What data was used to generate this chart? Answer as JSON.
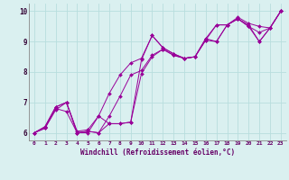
{
  "xlabel": "Windchill (Refroidissement éolien,°C)",
  "background_color": "#daf0f0",
  "line_color": "#990099",
  "grid_color": "#b8dede",
  "xlim": [
    -0.5,
    23.5
  ],
  "ylim": [
    5.75,
    10.25
  ],
  "xticks": [
    0,
    1,
    2,
    3,
    4,
    5,
    6,
    7,
    8,
    9,
    10,
    11,
    12,
    13,
    14,
    15,
    16,
    17,
    18,
    19,
    20,
    21,
    22,
    23
  ],
  "yticks": [
    6,
    7,
    8,
    9,
    10
  ],
  "series": [
    [
      6.0,
      6.2,
      6.85,
      7.0,
      6.0,
      6.0,
      6.55,
      6.3,
      6.3,
      6.35,
      8.4,
      9.2,
      8.8,
      8.6,
      8.45,
      8.5,
      9.05,
      9.55,
      9.55,
      9.75,
      9.55,
      9.0,
      9.45,
      10.0
    ],
    [
      6.0,
      6.15,
      6.8,
      6.7,
      6.0,
      6.05,
      6.0,
      6.3,
      6.3,
      6.35,
      7.95,
      8.5,
      8.75,
      8.55,
      8.45,
      8.5,
      9.05,
      9.0,
      9.55,
      9.75,
      9.5,
      9.0,
      9.45,
      10.0
    ],
    [
      6.0,
      6.2,
      6.85,
      7.0,
      6.05,
      6.1,
      6.55,
      7.3,
      7.9,
      8.3,
      8.45,
      9.2,
      8.8,
      8.6,
      8.45,
      8.5,
      9.1,
      9.55,
      9.55,
      9.8,
      9.6,
      9.5,
      9.45,
      10.0
    ],
    [
      6.0,
      6.15,
      6.75,
      7.0,
      6.0,
      6.05,
      6.0,
      6.55,
      7.2,
      7.9,
      8.05,
      8.55,
      8.75,
      8.55,
      8.45,
      8.5,
      9.1,
      9.0,
      9.55,
      9.75,
      9.5,
      9.3,
      9.45,
      10.0
    ]
  ]
}
